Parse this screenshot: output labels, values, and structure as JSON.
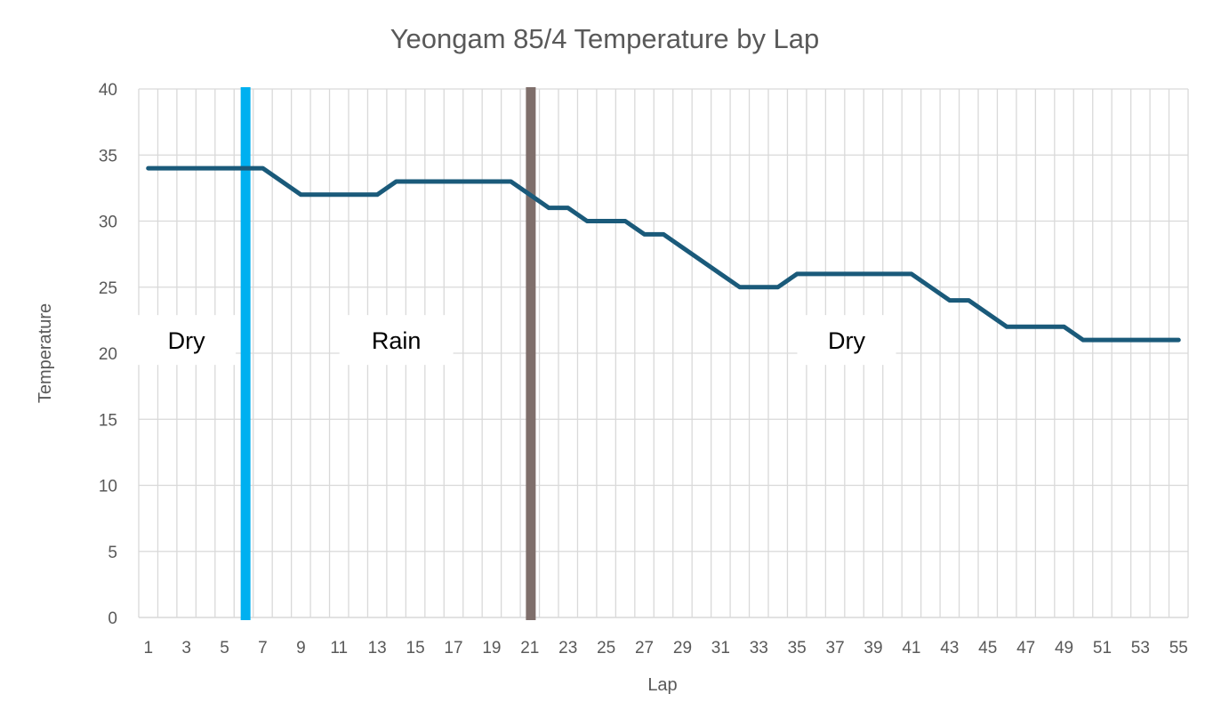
{
  "chart_data": {
    "type": "line",
    "title": "Yeongam 85/4 Temperature by Lap",
    "xlabel": "Lap",
    "ylabel": "Temperature",
    "xlim": [
      1,
      55
    ],
    "ylim": [
      0,
      40
    ],
    "y_ticks": [
      0,
      5,
      10,
      15,
      20,
      25,
      30,
      35,
      40
    ],
    "x_tick_labels": [
      1,
      3,
      5,
      7,
      9,
      11,
      13,
      15,
      17,
      19,
      21,
      23,
      25,
      27,
      29,
      31,
      33,
      35,
      37,
      39,
      41,
      43,
      45,
      47,
      49,
      51,
      53,
      55
    ],
    "grid": true,
    "series": [
      {
        "name": "Temperature",
        "color": "#1a5a7a",
        "x": [
          1,
          2,
          3,
          4,
          5,
          6,
          7,
          8,
          9,
          10,
          11,
          12,
          13,
          14,
          15,
          16,
          17,
          18,
          19,
          20,
          21,
          22,
          23,
          24,
          25,
          26,
          27,
          28,
          29,
          30,
          31,
          32,
          33,
          34,
          35,
          36,
          37,
          38,
          39,
          40,
          41,
          42,
          43,
          44,
          45,
          46,
          47,
          48,
          49,
          50,
          51,
          52,
          53,
          54,
          55
        ],
        "values": [
          34,
          34,
          34,
          34,
          34,
          34,
          34,
          33,
          32,
          32,
          32,
          32,
          32,
          33,
          33,
          33,
          33,
          33,
          33,
          33,
          32,
          31,
          31,
          30,
          30,
          30,
          29,
          29,
          28,
          27,
          26,
          25,
          25,
          25,
          26,
          26,
          26,
          26,
          26,
          26,
          26,
          25,
          24,
          24,
          23,
          22,
          22,
          22,
          22,
          21,
          21,
          21,
          21,
          21,
          21
        ]
      }
    ],
    "markers": [
      {
        "name": "rain-start",
        "lap": 6.1,
        "color": "#00b0f0"
      },
      {
        "name": "rain-end",
        "lap": 21.05,
        "color": "#7f6f6b"
      }
    ],
    "annotations": [
      {
        "text": "Dry",
        "lap": 3.0,
        "value": 21
      },
      {
        "text": "Rain",
        "lap": 14.0,
        "value": 21
      },
      {
        "text": "Dry",
        "lap": 37.6,
        "value": 21
      }
    ]
  }
}
